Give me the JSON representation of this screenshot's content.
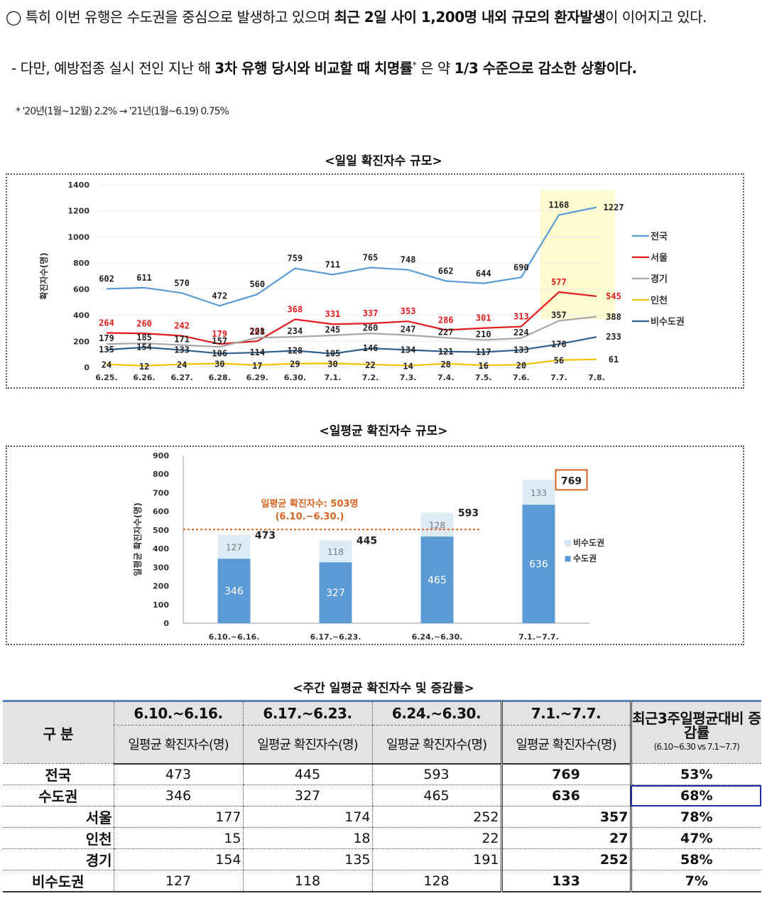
{
  "notes": {
    "line1_prefix": "◯ 특히 이번 유행은 수도권을 중심으로 발생하고 있으며 ",
    "line1_bold": "최근 2일 사이 1,200명 내외 규모의 환자발생",
    "line1_suffix": "이 이어지고 있다.",
    "line2_prefix": "- 다만, 예방접종 실시 전인 지난 해 ",
    "line2_bold": "3차 유행 당시와 비교할 때 치명률",
    "line2_star": "*",
    "line2_mid": " 은 약 ",
    "line2_bold2": "1/3 수준으로 감소한 상황이다.",
    "footnote": "* '20년(1월~12월) 2.2% → '21년(1월~6.19) 0.75%"
  },
  "chart1_title": "<일일 확진자수 규모>",
  "chart2_title": "<일평균 확진자수 규모>",
  "table_title": "<주간 일평균 확진자수 및 증감률>",
  "chart_data": [
    {
      "type": "line",
      "title": "<일일 확진자수 규모>",
      "ylabel": "확진자수(명)",
      "ylim": [
        0,
        1400
      ],
      "yticks": [
        0,
        200,
        400,
        600,
        800,
        1000,
        1200,
        1400
      ],
      "categories": [
        "6.25.",
        "6.26.",
        "6.27.",
        "6.28.",
        "6.29.",
        "6.30.",
        "7.1.",
        "7.2.",
        "7.3.",
        "7.4.",
        "7.5.",
        "7.6.",
        "7.7.",
        "7.8."
      ],
      "highlight": [
        "7.7.",
        "7.8."
      ],
      "series": [
        {
          "name": "전국",
          "color": "#5b9bd5",
          "labelColor": "#222222",
          "values": [
            602,
            611,
            570,
            472,
            560,
            759,
            711,
            765,
            748,
            662,
            644,
            690,
            1168,
            1227
          ]
        },
        {
          "name": "서울",
          "color": "#e31a1c",
          "labelColor": "#e31a1c",
          "values": [
            264,
            260,
            242,
            179,
            201,
            368,
            331,
            337,
            353,
            286,
            301,
            313,
            577,
            545
          ]
        },
        {
          "name": "경기",
          "color": "#a6a6a6",
          "labelColor": "#222222",
          "values": [
            179,
            185,
            171,
            157,
            228,
            234,
            245,
            260,
            247,
            227,
            210,
            224,
            357,
            388
          ]
        },
        {
          "name": "인천",
          "color": "#f2c200",
          "labelColor": "#222222",
          "values": [
            24,
            12,
            24,
            30,
            17,
            29,
            30,
            22,
            14,
            28,
            16,
            20,
            56,
            61
          ]
        },
        {
          "name": "비수도권",
          "color": "#2f5f8f",
          "labelColor": "#222222",
          "values": [
            135,
            154,
            133,
            106,
            114,
            128,
            105,
            146,
            134,
            121,
            117,
            133,
            178,
            233
          ]
        }
      ]
    },
    {
      "type": "bar",
      "stacked": true,
      "title": "<일평균 확진자수 규모>",
      "ylabel": "일평균 확진자수(명)",
      "ylim": [
        0,
        900
      ],
      "yticks": [
        0,
        100,
        200,
        300,
        400,
        500,
        600,
        700,
        800,
        900
      ],
      "categories": [
        "6.10.~6.16.",
        "6.17.~6.23.",
        "6.24.~6.30.",
        "7.1.~7.7."
      ],
      "series": [
        {
          "name": "수도권",
          "color": "#5b9bd5",
          "values": [
            346,
            327,
            465,
            636
          ]
        },
        {
          "name": "비수도권",
          "color": "#ddebf7",
          "values": [
            127,
            118,
            128,
            133
          ]
        }
      ],
      "totals": [
        473,
        445,
        593,
        769
      ],
      "reference_line": {
        "value": 503,
        "label1": "일평균 확진자수: 503명",
        "label2": "(6.10.~6.30.)",
        "color": "#d9621e"
      }
    }
  ],
  "table": {
    "gubun": "구 분",
    "weeks": [
      "6.10.~6.16.",
      "6.17.~6.23.",
      "6.24.~6.30.",
      "7.1.~7.7."
    ],
    "sub_header": "일평균 확진자수(명)",
    "inc_header": "최근3주일평균대비 증감률",
    "inc_sub": "(6.10~6.30 vs 7.1~7.7)",
    "rows": [
      {
        "label": "전국",
        "v": [
          "473",
          "445",
          "593",
          "769"
        ],
        "inc": "53%"
      },
      {
        "label": "수도권",
        "v": [
          "346",
          "327",
          "465",
          "636"
        ],
        "inc": "68%"
      },
      {
        "label": "서울",
        "v": [
          "177",
          "174",
          "252",
          "357"
        ],
        "inc": "78%"
      },
      {
        "label": "인천",
        "v": [
          "15",
          "18",
          "22",
          "27"
        ],
        "inc": "47%"
      },
      {
        "label": "경기",
        "v": [
          "154",
          "135",
          "191",
          "252"
        ],
        "inc": "58%"
      },
      {
        "label": "비수도권",
        "v": [
          "127",
          "118",
          "128",
          "133"
        ],
        "inc": "7%"
      }
    ]
  }
}
